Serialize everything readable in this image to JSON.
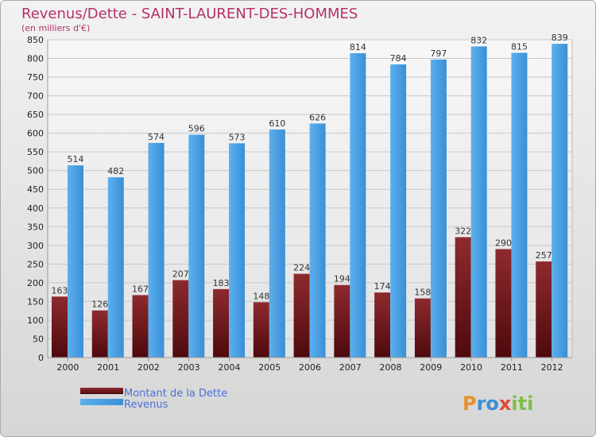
{
  "chart_data": {
    "type": "bar",
    "title": "Revenus/Dette - SAINT-LAURENT-DES-HOMMES",
    "subtitle": "(en milliers d'€)",
    "categories": [
      "2000",
      "2001",
      "2002",
      "2003",
      "2004",
      "2005",
      "2006",
      "2007",
      "2008",
      "2009",
      "2010",
      "2011",
      "2012"
    ],
    "series": [
      {
        "name": "Montant de la Dette",
        "color": "#6e1518",
        "values": [
          163,
          126,
          167,
          207,
          183,
          148,
          224,
          194,
          174,
          158,
          322,
          290,
          257
        ]
      },
      {
        "name": "Revenus",
        "color": "#4aa0e4",
        "values": [
          514,
          482,
          574,
          596,
          573,
          610,
          626,
          814,
          784,
          797,
          832,
          815,
          839
        ]
      }
    ],
    "ylim": [
      0,
      850
    ],
    "yticks": [
      0,
      50,
      100,
      150,
      200,
      250,
      300,
      350,
      400,
      450,
      500,
      550,
      600,
      650,
      700,
      750,
      800,
      850
    ],
    "grid": true,
    "legend_position": "bottom-left"
  },
  "branding": {
    "logo_text": "Proxiti"
  }
}
